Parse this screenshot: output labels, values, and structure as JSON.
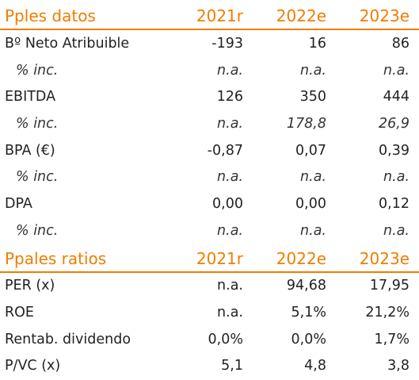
{
  "section1": {
    "title": "Pples datos",
    "columns": [
      "2021r",
      "2022e",
      "2023e"
    ],
    "rows": [
      {
        "label": "Bº Neto Atribuible",
        "values": [
          "-193",
          "16",
          "86"
        ],
        "type": "metric"
      },
      {
        "label": "% inc.",
        "values": [
          "n.a.",
          "n.a.",
          "n.a."
        ],
        "type": "sub"
      },
      {
        "label": "EBITDA",
        "values": [
          "126",
          "350",
          "444"
        ],
        "type": "metric"
      },
      {
        "label": "% inc.",
        "values": [
          "n.a.",
          "178,8",
          "26,9"
        ],
        "type": "sub"
      },
      {
        "label": "BPA (€)",
        "values": [
          "-0,87",
          "0,07",
          "0,39"
        ],
        "type": "metric"
      },
      {
        "label": "% inc.",
        "values": [
          "n.a.",
          "n.a.",
          "n.a."
        ],
        "type": "sub"
      },
      {
        "label": "DPA",
        "values": [
          "0,00",
          "0,00",
          "0,12"
        ],
        "type": "metric"
      },
      {
        "label": "% inc.",
        "values": [
          "n.a.",
          "n.a.",
          "n.a."
        ],
        "type": "sub"
      }
    ]
  },
  "section2": {
    "title": "Ppales ratios",
    "columns": [
      "2021r",
      "2022e",
      "2023e"
    ],
    "rows": [
      {
        "label": "PER (x)",
        "values": [
          "n.a.",
          "94,68",
          "17,95"
        ],
        "type": "metric"
      },
      {
        "label": "ROE",
        "values": [
          "n.a.",
          "5,1%",
          "21,2%"
        ],
        "type": "metric"
      },
      {
        "label": "Rentab. dividendo",
        "values": [
          "0,0%",
          "0,0%",
          "1,7%"
        ],
        "type": "metric"
      },
      {
        "label": "P/VC (x)",
        "values": [
          "5,1",
          "4,8",
          "3,8"
        ],
        "type": "metric"
      }
    ]
  },
  "colors": {
    "accent": "#f07d00",
    "text": "#222222"
  }
}
